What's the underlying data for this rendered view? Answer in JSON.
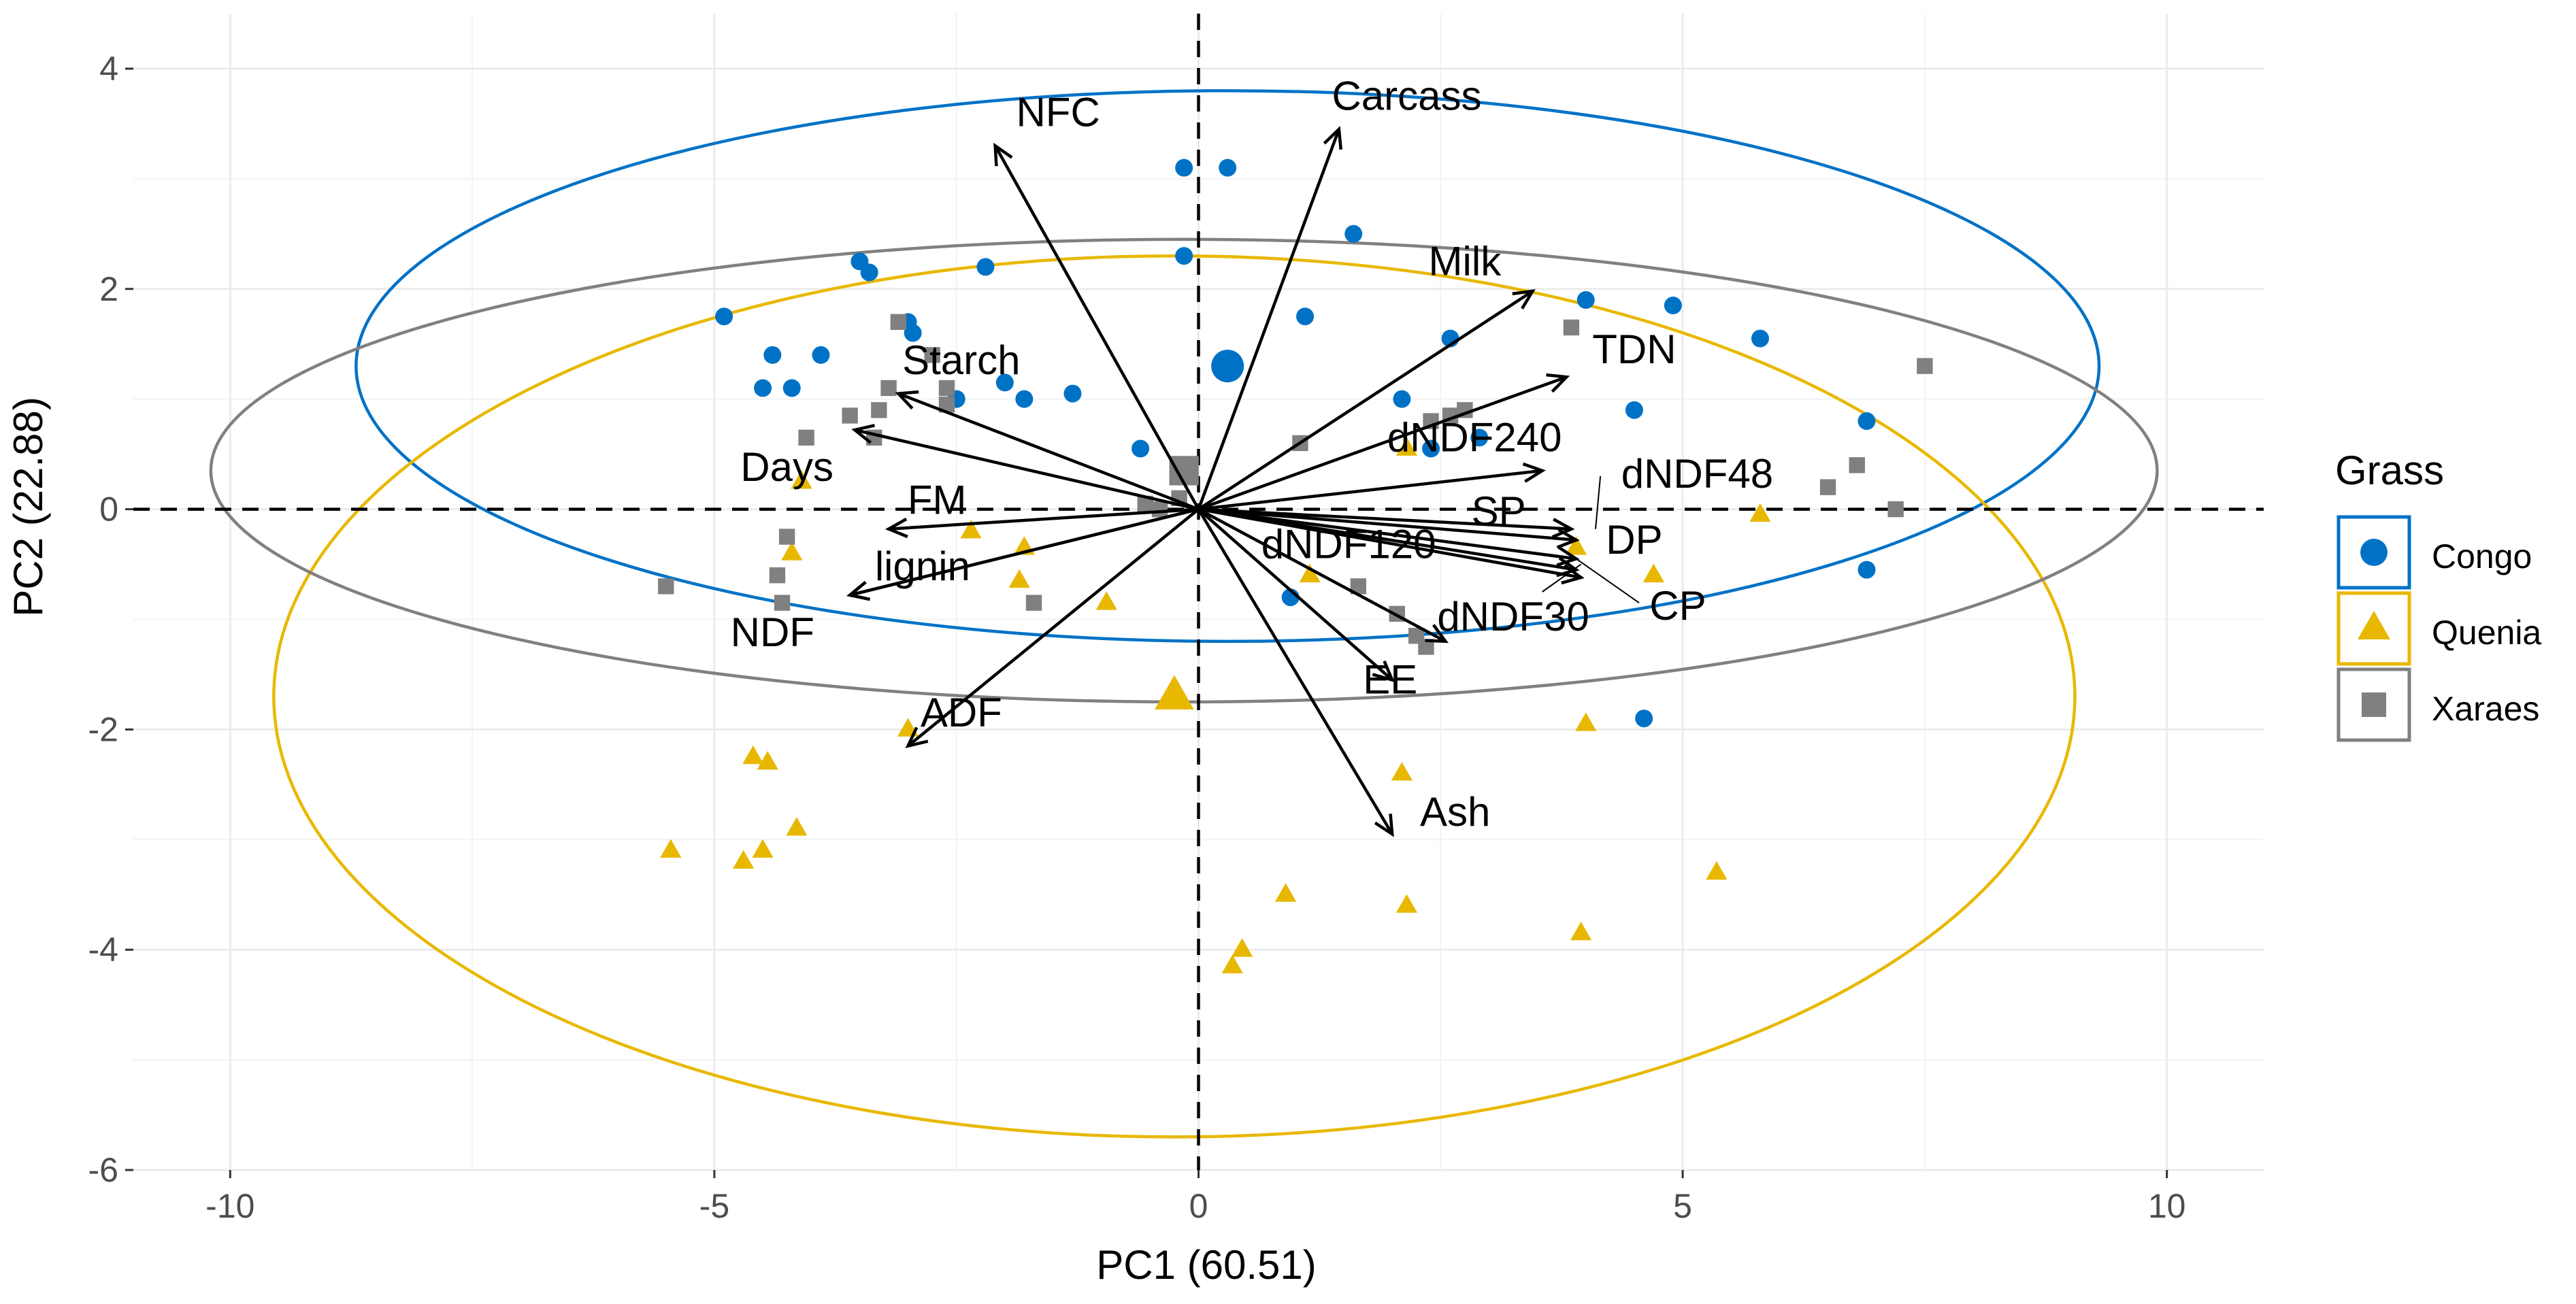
{
  "chart_data": {
    "type": "scatter",
    "subtype": "pca-biplot",
    "title": "",
    "xlabel": "PC1 (60.51)",
    "ylabel": "PC2 (22.88)",
    "xlim": [
      -11,
      11
    ],
    "ylim": [
      -6,
      4.5
    ],
    "xticks": [
      -10,
      -5,
      0,
      5,
      10
    ],
    "yticks": [
      -6,
      -4,
      -2,
      0,
      2,
      4
    ],
    "xtick_labels": [
      "-10",
      "-5",
      "0",
      "5",
      "10"
    ],
    "ytick_labels": [
      "-6",
      "-4",
      "-2",
      "0",
      "2",
      "4"
    ],
    "grid": true,
    "legend": {
      "title": "Grass",
      "position": "right",
      "entries": [
        {
          "name": "Congo",
          "color": "#0072C6",
          "marker": "circle"
        },
        {
          "name": "Quenia",
          "color": "#E8B800",
          "marker": "triangle"
        },
        {
          "name": "Xaraes",
          "color": "#808080",
          "marker": "square"
        }
      ]
    },
    "series": [
      {
        "name": "Congo",
        "color": "#0072C6",
        "marker": "circle",
        "centroid": [
          0.3,
          1.3
        ],
        "ellipse": {
          "center": [
            0.3,
            1.3
          ],
          "rx": 9.0,
          "ry": 2.5,
          "edge_color": "#0072C6"
        },
        "points": [
          [
            -0.15,
            3.1
          ],
          [
            0.3,
            3.1
          ],
          [
            -0.15,
            2.3
          ],
          [
            1.6,
            2.5
          ],
          [
            -3.5,
            2.25
          ],
          [
            -3.4,
            2.15
          ],
          [
            -2.2,
            2.2
          ],
          [
            -4.9,
            1.75
          ],
          [
            -4.4,
            1.4
          ],
          [
            -3.9,
            1.4
          ],
          [
            -3.0,
            1.7
          ],
          [
            -2.95,
            1.6
          ],
          [
            -4.5,
            1.1
          ],
          [
            -4.2,
            1.1
          ],
          [
            -2.5,
            1.0
          ],
          [
            -2.0,
            1.15
          ],
          [
            -1.8,
            1.0
          ],
          [
            -1.3,
            1.05
          ],
          [
            -0.6,
            0.55
          ],
          [
            1.1,
            1.75
          ],
          [
            2.6,
            1.55
          ],
          [
            2.1,
            1.0
          ],
          [
            4.0,
            1.9
          ],
          [
            4.9,
            1.85
          ],
          [
            5.8,
            1.55
          ],
          [
            4.5,
            0.9
          ],
          [
            6.9,
            0.8
          ],
          [
            2.9,
            0.65
          ],
          [
            2.4,
            0.55
          ],
          [
            0.95,
            -0.8
          ],
          [
            6.9,
            -0.55
          ],
          [
            4.6,
            -1.9
          ]
        ]
      },
      {
        "name": "Quenia",
        "color": "#E8B800",
        "marker": "triangle",
        "centroid": [
          -0.25,
          -1.7
        ],
        "ellipse": {
          "center": [
            -0.25,
            -1.7
          ],
          "rx": 9.3,
          "ry": 4.0,
          "edge_color": "#E8B800"
        },
        "points": [
          [
            -4.1,
            0.25
          ],
          [
            -2.35,
            -0.2
          ],
          [
            -1.8,
            -0.35
          ],
          [
            -1.85,
            -0.65
          ],
          [
            -4.2,
            -0.4
          ],
          [
            -0.95,
            -0.85
          ],
          [
            1.15,
            -0.6
          ],
          [
            2.15,
            0.55
          ],
          [
            3.9,
            -0.35
          ],
          [
            4.7,
            -0.6
          ],
          [
            5.8,
            -0.05
          ],
          [
            -3.0,
            -2.0
          ],
          [
            -4.6,
            -2.25
          ],
          [
            -4.45,
            -2.3
          ],
          [
            -5.45,
            -3.1
          ],
          [
            -4.7,
            -3.2
          ],
          [
            -4.5,
            -3.1
          ],
          [
            -4.15,
            -2.9
          ],
          [
            2.1,
            -2.4
          ],
          [
            4.0,
            -1.95
          ],
          [
            0.9,
            -3.5
          ],
          [
            2.15,
            -3.6
          ],
          [
            5.35,
            -3.3
          ],
          [
            3.95,
            -3.85
          ],
          [
            0.45,
            -4.0
          ],
          [
            0.35,
            -4.15
          ]
        ]
      },
      {
        "name": "Xaraes",
        "color": "#808080",
        "marker": "square",
        "centroid": [
          -0.15,
          0.35
        ],
        "ellipse": {
          "center": [
            -0.15,
            0.35
          ],
          "rx": 10.05,
          "ry": 2.1,
          "edge_color": "#808080"
        },
        "points": [
          [
            -3.1,
            1.7
          ],
          [
            -2.75,
            1.4
          ],
          [
            -2.6,
            1.1
          ],
          [
            -2.6,
            0.95
          ],
          [
            -3.2,
            1.1
          ],
          [
            -3.3,
            0.9
          ],
          [
            -3.6,
            0.85
          ],
          [
            -3.35,
            0.65
          ],
          [
            -4.05,
            0.65
          ],
          [
            -0.1,
            0.35
          ],
          [
            -0.2,
            0.1
          ],
          [
            -0.4,
            0.0
          ],
          [
            -0.55,
            0.05
          ],
          [
            1.05,
            0.6
          ],
          [
            2.4,
            0.8
          ],
          [
            2.6,
            0.85
          ],
          [
            2.75,
            0.9
          ],
          [
            3.85,
            1.65
          ],
          [
            6.5,
            0.2
          ],
          [
            6.8,
            0.4
          ],
          [
            7.2,
            0.0
          ],
          [
            7.5,
            1.3
          ],
          [
            -4.25,
            -0.25
          ],
          [
            -4.35,
            -0.6
          ],
          [
            -4.3,
            -0.85
          ],
          [
            -5.5,
            -0.7
          ],
          [
            -1.7,
            -0.85
          ],
          [
            1.65,
            -0.7
          ],
          [
            2.05,
            -0.95
          ],
          [
            2.25,
            -1.15
          ],
          [
            2.35,
            -1.25
          ]
        ]
      }
    ],
    "loadings": [
      {
        "name": "NFC",
        "x": -2.1,
        "y": 3.3
      },
      {
        "name": "Carcass",
        "x": 1.45,
        "y": 3.45
      },
      {
        "name": "Milk",
        "x": 3.45,
        "y": 1.98
      },
      {
        "name": "TDN",
        "x": 3.8,
        "y": 1.2
      },
      {
        "name": "Starch",
        "x": -3.1,
        "y": 1.05
      },
      {
        "name": "Days",
        "x": -3.55,
        "y": 0.72
      },
      {
        "name": "dNDF240",
        "x": 3.55,
        "y": 0.35
      },
      {
        "name": "dNDF48",
        "x": 3.85,
        "y": -0.18
      },
      {
        "name": "SP",
        "x": 3.9,
        "y": -0.28
      },
      {
        "name": "FM",
        "x": -3.2,
        "y": -0.18
      },
      {
        "name": "lignin",
        "x": -3.6,
        "y": -0.78
      },
      {
        "name": "dNDF120",
        "x": 3.9,
        "y": -0.45
      },
      {
        "name": "DP",
        "x": 3.9,
        "y": -0.55
      },
      {
        "name": "CP",
        "x": 3.95,
        "y": -0.62
      },
      {
        "name": "dNDF30",
        "x": 2.55,
        "y": -1.2
      },
      {
        "name": "ADF",
        "x": -3.0,
        "y": -2.15
      },
      {
        "name": "Ash",
        "x": 2.0,
        "y": -2.95
      },
      {
        "name": "EE",
        "x": 2.0,
        "y": -1.55
      },
      {
        "name": "NDF",
        "x": -3.6,
        "y": -0.78
      }
    ],
    "loading_labels": [
      {
        "name": "NFC",
        "x": -1.45,
        "y": 3.6
      },
      {
        "name": "Carcass",
        "x": 2.15,
        "y": 3.75
      },
      {
        "name": "Milk",
        "x": 2.75,
        "y": 2.25
      },
      {
        "name": "TDN",
        "x": 4.5,
        "y": 1.45
      },
      {
        "name": "Starch",
        "x": -2.45,
        "y": 1.35
      },
      {
        "name": "Days",
        "x": -4.25,
        "y": 0.38
      },
      {
        "name": "dNDF240",
        "x": 2.85,
        "y": 0.65
      },
      {
        "name": "dNDF48",
        "x": 5.15,
        "y": 0.32
      },
      {
        "name": "SP",
        "x": 3.1,
        "y": -0.02
      },
      {
        "name": "FM",
        "x": -2.7,
        "y": 0.08
      },
      {
        "name": "lignin",
        "x": -2.85,
        "y": -0.52
      },
      {
        "name": "dNDF120",
        "x": 1.55,
        "y": -0.32
      },
      {
        "name": "DP",
        "x": 4.5,
        "y": -0.28
      },
      {
        "name": "CP",
        "x": 4.95,
        "y": -0.88
      },
      {
        "name": "dNDF30",
        "x": 3.25,
        "y": -0.98
      },
      {
        "name": "ADF",
        "x": -2.45,
        "y": -1.85
      },
      {
        "name": "Ash",
        "x": 2.65,
        "y": -2.75
      },
      {
        "name": "EE",
        "x": 1.98,
        "y": -1.55
      },
      {
        "name": "NDF",
        "x": -4.4,
        "y": -1.12
      }
    ],
    "label_leaders": [
      {
        "name": "dNDF48",
        "from": [
          4.1,
          -0.18
        ],
        "to": [
          4.15,
          0.3
        ]
      },
      {
        "name": "dNDF30",
        "from": [
          3.95,
          -0.5
        ],
        "to": [
          3.55,
          -0.75
        ]
      },
      {
        "name": "CP",
        "from": [
          3.9,
          -0.45
        ],
        "to": [
          4.55,
          -0.85
        ]
      }
    ]
  }
}
